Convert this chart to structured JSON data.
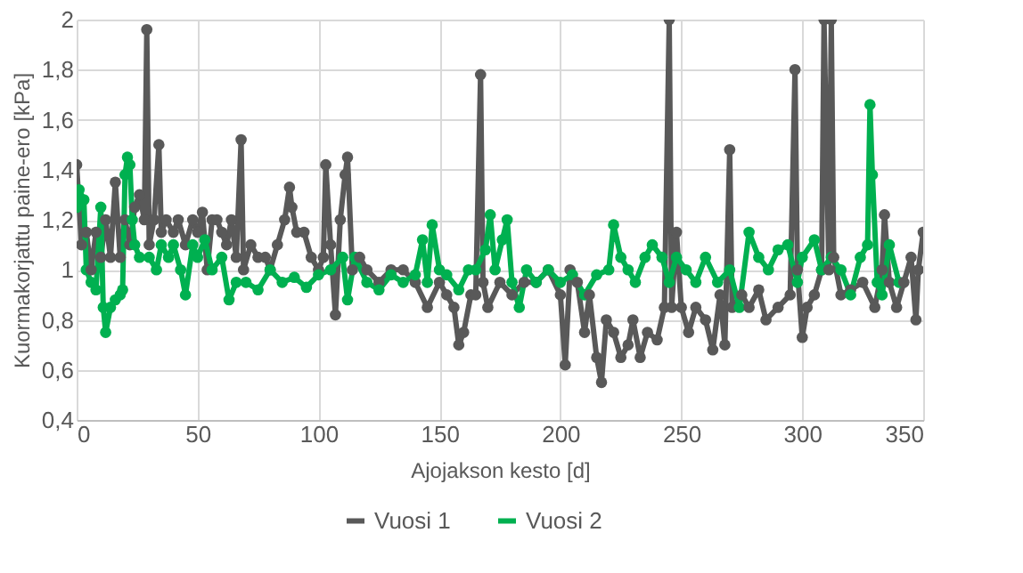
{
  "chart_data": {
    "type": "line",
    "xlabel": "Ajojakson kesto [d]",
    "ylabel": "Kuormakorjattu paine-ero [kPa]",
    "xlim": [
      0,
      350
    ],
    "xticks": [
      0,
      50,
      100,
      150,
      200,
      250,
      300,
      350
    ],
    "ylim": [
      0.4,
      2
    ],
    "yticks": [
      {
        "value": 0.4,
        "label": "0,4"
      },
      {
        "value": 0.6,
        "label": "0,6"
      },
      {
        "value": 0.8,
        "label": "0,8"
      },
      {
        "value": 1,
        "label": "1"
      },
      {
        "value": 1.2,
        "label": "1,2"
      },
      {
        "value": 1.4,
        "label": "1,4"
      },
      {
        "value": 1.6,
        "label": "1,6"
      },
      {
        "value": 1.8,
        "label": "1,8"
      },
      {
        "value": 2,
        "label": "2"
      }
    ],
    "grid": true,
    "legend": "bottom",
    "marker": "circle",
    "line_style": "solid",
    "series": [
      {
        "name": "Vuosi 1",
        "color": "#595959",
        "x": [
          0,
          2,
          4,
          6,
          8,
          10,
          12,
          14,
          16,
          18,
          20,
          22,
          24,
          26,
          28,
          29,
          30,
          32,
          34,
          35,
          37,
          40,
          42,
          45,
          48,
          50,
          52,
          54,
          56,
          58,
          60,
          62,
          64,
          66,
          68,
          69,
          72,
          75,
          78,
          80,
          83,
          86,
          88,
          89,
          91,
          94,
          97,
          100,
          102,
          103,
          105,
          107,
          109,
          111,
          112,
          114,
          117,
          120,
          125,
          130,
          135,
          140,
          145,
          150,
          153,
          156,
          158,
          160,
          163,
          165,
          167,
          168,
          170,
          175,
          180,
          185,
          190,
          195,
          200,
          202,
          204,
          207,
          210,
          212,
          215,
          217,
          219,
          222,
          225,
          228,
          230,
          233,
          236,
          240,
          243,
          245,
          246,
          248,
          250,
          253,
          256,
          260,
          263,
          266,
          268,
          270,
          271,
          275,
          278,
          282,
          285,
          290,
          295,
          297,
          298,
          300,
          302,
          305,
          308,
          309,
          311,
          312,
          313,
          316,
          320,
          325,
          330,
          333,
          334,
          336,
          339,
          342,
          345,
          347,
          348,
          350
        ],
        "values": [
          1.42,
          1.1,
          1.15,
          1.0,
          1.15,
          1.05,
          1.2,
          1.05,
          1.35,
          1.05,
          1.2,
          1.1,
          1.25,
          1.3,
          1.2,
          1.96,
          1.1,
          1.2,
          1.5,
          1.15,
          1.2,
          1.15,
          1.2,
          1.1,
          1.2,
          1.15,
          1.23,
          1.0,
          1.2,
          1.2,
          1.15,
          1.1,
          1.2,
          1.05,
          1.52,
          1.0,
          1.1,
          1.05,
          1.05,
          1.0,
          1.1,
          1.2,
          1.33,
          1.25,
          1.15,
          1.15,
          1.05,
          1.0,
          1.05,
          1.42,
          1.1,
          0.82,
          1.2,
          1.38,
          1.45,
          1.0,
          1.05,
          1.0,
          0.95,
          1.0,
          1.0,
          0.95,
          0.85,
          0.95,
          0.9,
          0.85,
          0.7,
          0.75,
          0.9,
          0.9,
          1.78,
          0.95,
          0.85,
          0.95,
          0.9,
          0.95,
          0.95,
          1.0,
          0.9,
          0.62,
          1.0,
          0.95,
          0.75,
          0.9,
          0.65,
          0.55,
          0.8,
          0.75,
          0.65,
          0.7,
          0.8,
          0.65,
          0.75,
          0.72,
          0.85,
          2.0,
          0.85,
          1.15,
          0.85,
          0.75,
          0.85,
          0.8,
          0.68,
          0.9,
          0.7,
          1.48,
          0.85,
          0.9,
          0.85,
          0.92,
          0.8,
          0.85,
          0.9,
          1.8,
          1.0,
          0.73,
          0.85,
          0.9,
          1.0,
          2.0,
          1.0,
          2.0,
          1.05,
          0.9,
          0.92,
          0.95,
          0.85,
          1.0,
          1.22,
          0.95,
          0.85,
          0.95,
          1.05,
          0.8,
          1.0,
          1.15
        ]
      },
      {
        "name": "Vuosi 2",
        "color": "#00b050",
        "x": [
          0,
          1,
          3,
          4,
          6,
          8,
          10,
          11,
          12,
          14,
          16,
          18,
          19,
          20,
          21,
          22,
          23,
          24,
          26,
          30,
          33,
          35,
          38,
          40,
          43,
          45,
          48,
          50,
          53,
          56,
          60,
          63,
          66,
          70,
          75,
          80,
          85,
          90,
          95,
          100,
          105,
          110,
          112,
          115,
          120,
          125,
          130,
          135,
          140,
          143,
          145,
          147,
          150,
          153,
          158,
          162,
          165,
          169,
          171,
          173,
          176,
          178,
          180,
          183,
          186,
          190,
          195,
          200,
          205,
          210,
          215,
          220,
          222,
          225,
          228,
          231,
          235,
          238,
          242,
          245,
          248,
          252,
          256,
          260,
          265,
          270,
          274,
          278,
          282,
          286,
          290,
          294,
          298,
          300,
          305,
          308,
          312,
          316,
          320,
          324,
          327,
          328,
          329,
          331,
          333,
          336,
          340
        ],
        "values": [
          1.25,
          1.32,
          1.28,
          1.0,
          0.95,
          0.92,
          1.25,
          0.85,
          0.75,
          0.85,
          0.88,
          0.9,
          0.92,
          1.38,
          1.45,
          1.42,
          1.2,
          1.1,
          1.05,
          1.05,
          1.0,
          1.1,
          1.05,
          1.1,
          1.0,
          0.9,
          1.1,
          1.05,
          1.12,
          1.0,
          1.05,
          0.88,
          0.95,
          0.95,
          0.92,
          1.0,
          0.95,
          0.97,
          0.93,
          0.98,
          1.0,
          1.05,
          0.88,
          1.05,
          0.95,
          0.92,
          0.98,
          0.95,
          0.98,
          1.12,
          0.95,
          1.18,
          1.0,
          0.98,
          0.92,
          1.0,
          1.0,
          1.08,
          1.22,
          1.0,
          1.12,
          1.2,
          0.95,
          0.85,
          1.0,
          0.95,
          1.0,
          0.95,
          0.98,
          0.9,
          0.98,
          1.0,
          1.18,
          1.05,
          1.0,
          0.95,
          1.05,
          1.1,
          1.05,
          0.95,
          1.05,
          1.0,
          0.95,
          1.05,
          0.95,
          1.0,
          0.85,
          1.15,
          1.05,
          1.0,
          1.08,
          1.1,
          0.95,
          1.05,
          1.12,
          1.0,
          1.05,
          1.0,
          0.9,
          1.05,
          1.1,
          1.66,
          1.38,
          0.95,
          0.9,
          1.1,
          0.95
        ]
      }
    ]
  }
}
